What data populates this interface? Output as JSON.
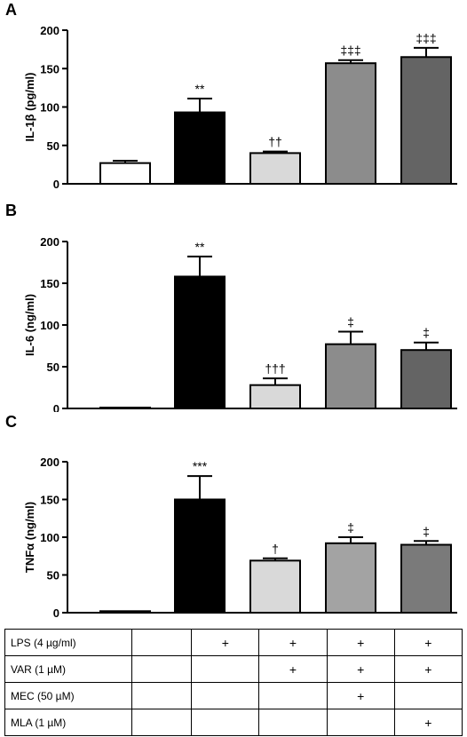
{
  "chart_data": [
    {
      "panel": "A",
      "type": "bar",
      "ylabel": "IL-1β (pg/ml)",
      "ylim": [
        0,
        200
      ],
      "yticks": [
        0,
        50,
        100,
        150,
        200
      ],
      "values": [
        27,
        93,
        40,
        157,
        165
      ],
      "errors": [
        3,
        18,
        2,
        4,
        12
      ],
      "significance": [
        "",
        "**",
        "††",
        "‡‡‡",
        "‡‡‡"
      ],
      "colors": [
        "#ffffff",
        "#000000",
        "#d9d9d9",
        "#8c8c8c",
        "#646464"
      ]
    },
    {
      "panel": "B",
      "type": "bar",
      "ylabel": "IL-6 (ng/ml)",
      "ylim": [
        0,
        200
      ],
      "yticks": [
        0,
        50,
        100,
        150,
        200
      ],
      "values": [
        1,
        158,
        28,
        77,
        70
      ],
      "errors": [
        0,
        24,
        8,
        15,
        9
      ],
      "significance": [
        "",
        "**",
        "†††",
        "‡",
        "‡"
      ],
      "colors": [
        "#ffffff",
        "#000000",
        "#d9d9d9",
        "#8c8c8c",
        "#646464"
      ]
    },
    {
      "panel": "C",
      "type": "bar",
      "ylabel": "TNFα (ng/ml)",
      "ylim": [
        0,
        200
      ],
      "yticks": [
        0,
        50,
        100,
        150,
        200
      ],
      "values": [
        2,
        150,
        69,
        92,
        90
      ],
      "errors": [
        0,
        31,
        3,
        8,
        5
      ],
      "significance": [
        "",
        "***",
        "†",
        "‡",
        "‡"
      ],
      "colors": [
        "#ffffff",
        "#000000",
        "#d9d9d9",
        "#a3a3a3",
        "#7a7a7a"
      ]
    }
  ],
  "treatment_table": {
    "rows": [
      {
        "label": "LPS (4 µg/ml)",
        "cells": [
          "",
          "+",
          "+",
          "+",
          "+"
        ]
      },
      {
        "label": "VAR (1 µM)",
        "cells": [
          "",
          "",
          "+",
          "+",
          "+"
        ]
      },
      {
        "label": "MEC (50 µM)",
        "cells": [
          "",
          "",
          "",
          "+",
          ""
        ]
      },
      {
        "label": "MLA (1 µM)",
        "cells": [
          "",
          "",
          "",
          "",
          "+"
        ]
      }
    ]
  }
}
